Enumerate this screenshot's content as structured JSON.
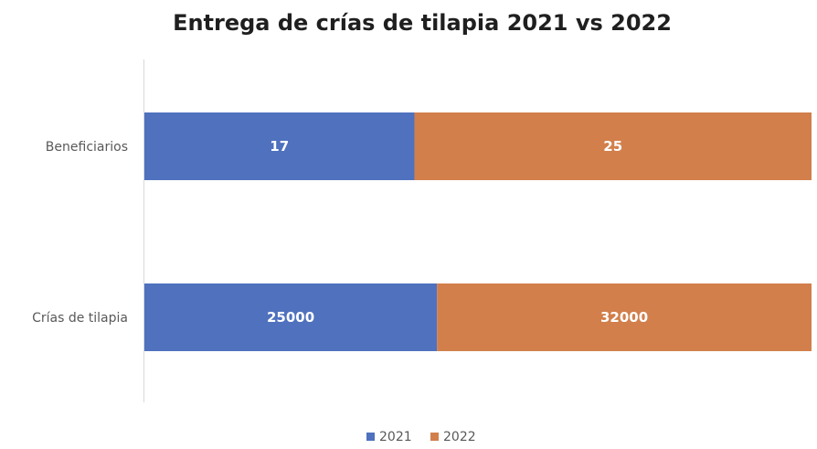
{
  "chart_data": {
    "type": "bar",
    "orientation": "horizontal",
    "stacked": "percent",
    "title": "Entrega de crías de tilapia 2021 vs 2022",
    "xlabel": "",
    "ylabel": "",
    "categories": [
      "Beneficiarios",
      "Crías de tilapia"
    ],
    "series": [
      {
        "name": "2021",
        "color": "#4f71be",
        "values": [
          17,
          25000
        ]
      },
      {
        "name": "2022",
        "color": "#d27f4b",
        "values": [
          25,
          32000
        ]
      }
    ],
    "data_labels": true,
    "grid": false,
    "legend_position": "bottom"
  }
}
